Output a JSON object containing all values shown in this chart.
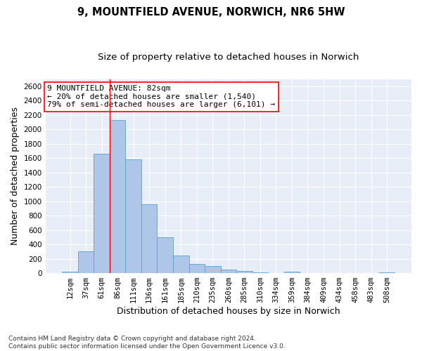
{
  "title": "9, MOUNTFIELD AVENUE, NORWICH, NR6 5HW",
  "subtitle": "Size of property relative to detached houses in Norwich",
  "xlabel": "Distribution of detached houses by size in Norwich",
  "ylabel": "Number of detached properties",
  "categories": [
    "12sqm",
    "37sqm",
    "61sqm",
    "86sqm",
    "111sqm",
    "136sqm",
    "161sqm",
    "185sqm",
    "210sqm",
    "235sqm",
    "260sqm",
    "285sqm",
    "310sqm",
    "334sqm",
    "359sqm",
    "384sqm",
    "409sqm",
    "434sqm",
    "458sqm",
    "483sqm",
    "508sqm"
  ],
  "values": [
    18,
    300,
    1665,
    2130,
    1585,
    960,
    498,
    248,
    128,
    103,
    45,
    28,
    15,
    5,
    18,
    5,
    3,
    0,
    0,
    0,
    10
  ],
  "bar_color": "#aec6e8",
  "bar_edgecolor": "#5a9fd4",
  "ref_line_index": 3,
  "ref_line_color": "red",
  "annotation_text": "9 MOUNTFIELD AVENUE: 82sqm\n← 20% of detached houses are smaller (1,540)\n79% of semi-detached houses are larger (6,101) →",
  "annotation_box_color": "white",
  "annotation_box_edgecolor": "red",
  "ylim": [
    0,
    2700
  ],
  "yticks": [
    0,
    200,
    400,
    600,
    800,
    1000,
    1200,
    1400,
    1600,
    1800,
    2000,
    2200,
    2400,
    2600
  ],
  "background_color": "#e8eef8",
  "grid_color": "white",
  "footer": "Contains HM Land Registry data © Crown copyright and database right 2024.\nContains public sector information licensed under the Open Government Licence v3.0.",
  "title_fontsize": 10.5,
  "subtitle_fontsize": 9.5,
  "xlabel_fontsize": 9,
  "ylabel_fontsize": 9,
  "tick_fontsize": 7.5,
  "annotation_fontsize": 8,
  "footer_fontsize": 6.5
}
